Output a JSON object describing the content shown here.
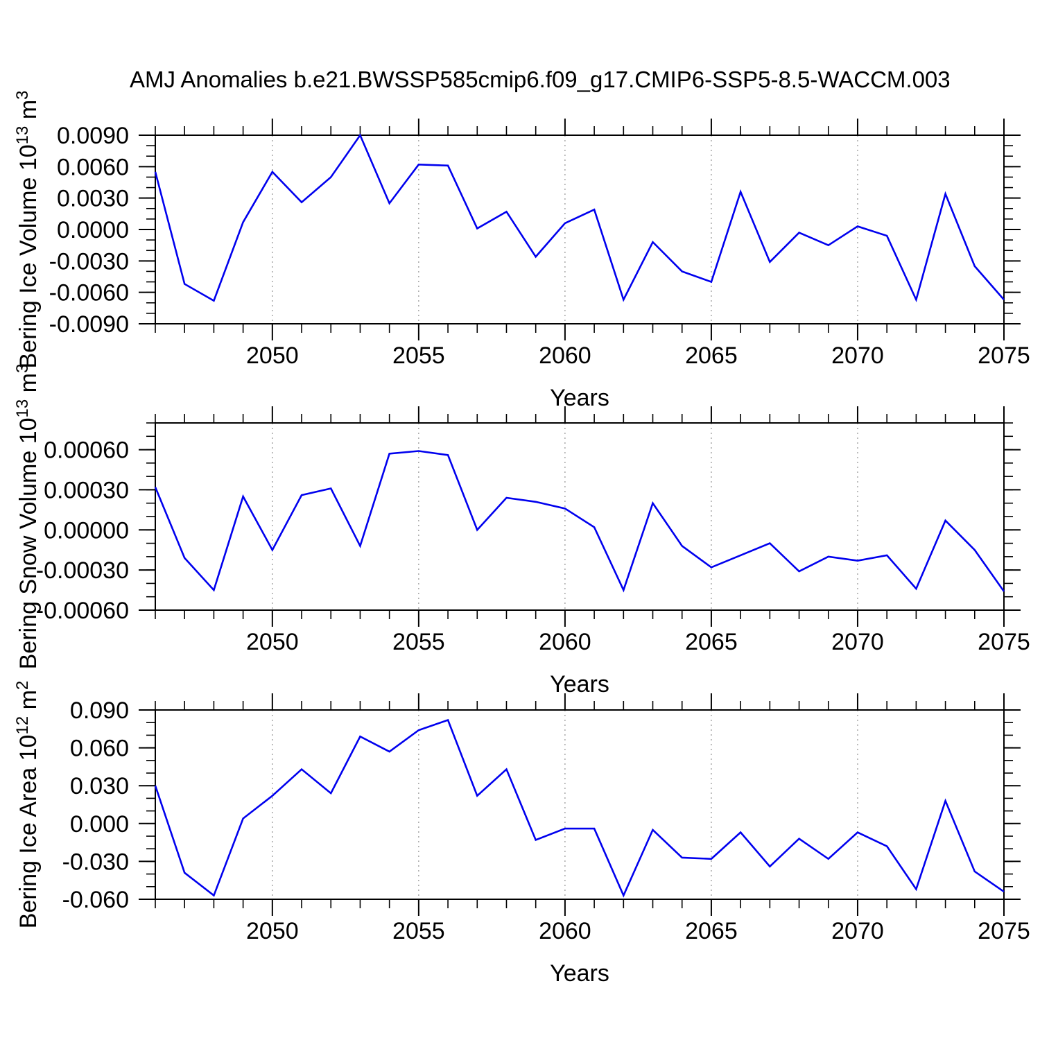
{
  "title": "AMJ Anomalies b.e21.BWSSP585cmip6.f09_g17.CMIP6-SSP5-8.5-WACCM.003",
  "colors": {
    "line": "#0000ee",
    "frame": "#000000",
    "grid": "#9a9a9a",
    "text": "#000000",
    "background": "#ffffff"
  },
  "chart_data": [
    {
      "type": "line",
      "name": "bering-ice-volume",
      "ylabel_segments": [
        [
          "text",
          "Bering Ice Volume 10"
        ],
        [
          "sup",
          "13"
        ],
        [
          "text",
          " m"
        ],
        [
          "sup",
          "3"
        ]
      ],
      "xlabel": "Years",
      "x": [
        2046,
        2047,
        2048,
        2049,
        2050,
        2051,
        2052,
        2053,
        2054,
        2055,
        2056,
        2057,
        2058,
        2059,
        2060,
        2061,
        2062,
        2063,
        2064,
        2065,
        2066,
        2067,
        2068,
        2069,
        2070,
        2071,
        2072,
        2073,
        2074,
        2075
      ],
      "values": [
        0.0055,
        -0.0052,
        -0.0068,
        0.0007,
        0.0055,
        0.0026,
        0.005,
        0.009,
        0.0025,
        0.0062,
        0.0061,
        0.0001,
        0.0017,
        -0.0026,
        0.0006,
        0.0019,
        -0.0067,
        -0.0012,
        -0.004,
        -0.005,
        0.0036,
        -0.0031,
        -0.0003,
        -0.0015,
        0.0003,
        -0.0006,
        -0.0067,
        0.0034,
        -0.0035,
        -0.0067
      ],
      "ylim": [
        -0.009,
        0.009
      ],
      "ytick_labels": [
        {
          "v": 0.009,
          "t": "0.0090"
        },
        {
          "v": 0.006,
          "t": "0.0060"
        },
        {
          "v": 0.003,
          "t": "0.0030"
        },
        {
          "v": 0.0,
          "t": "0.0000"
        },
        {
          "v": -0.003,
          "t": "-0.0030"
        },
        {
          "v": -0.006,
          "t": "-0.0060"
        },
        {
          "v": -0.009,
          "t": "-0.0090"
        }
      ],
      "ytick_minor_step": 0.001,
      "xlim": [
        2046,
        2075
      ],
      "xticks": [
        2050,
        2055,
        2060,
        2065,
        2070,
        2075
      ],
      "grid_xticks": [
        2050,
        2055,
        2060,
        2065,
        2070
      ],
      "xminor_step": 1
    },
    {
      "type": "line",
      "name": "bering-snow-volume",
      "ylabel_segments": [
        [
          "text",
          "Bering Snow Volume 10"
        ],
        [
          "sup",
          "13"
        ],
        [
          "text",
          " m"
        ],
        [
          "sup",
          "3"
        ]
      ],
      "xlabel": "Years",
      "x": [
        2046,
        2047,
        2048,
        2049,
        2050,
        2051,
        2052,
        2053,
        2054,
        2055,
        2056,
        2057,
        2058,
        2059,
        2060,
        2061,
        2062,
        2063,
        2064,
        2065,
        2066,
        2067,
        2068,
        2069,
        2070,
        2071,
        2072,
        2073,
        2074,
        2075
      ],
      "values": [
        0.00032,
        -0.00021,
        -0.00045,
        0.00025,
        -0.00015,
        0.00026,
        0.00031,
        -0.00012,
        0.00057,
        0.00059,
        0.00056,
        0.0,
        0.00024,
        0.00021,
        0.00016,
        2e-05,
        -0.00045,
        0.0002,
        -0.00012,
        -0.00028,
        -0.00019,
        -0.0001,
        -0.00031,
        -0.0002,
        -0.00023,
        -0.00019,
        -0.00044,
        7e-05,
        -0.00015,
        -0.00046
      ],
      "ylim": [
        -0.0006,
        0.0008
      ],
      "ytick_labels": [
        {
          "v": 0.0006,
          "t": "0.00060"
        },
        {
          "v": 0.0003,
          "t": "0.00030"
        },
        {
          "v": 0.0,
          "t": "0.00000"
        },
        {
          "v": -0.0003,
          "t": "-0.00030"
        },
        {
          "v": -0.0006,
          "t": "-0.00060"
        }
      ],
      "ytick_minor_step": 0.0001,
      "xlim": [
        2046,
        2075
      ],
      "xticks": [
        2050,
        2055,
        2060,
        2065,
        2070,
        2075
      ],
      "grid_xticks": [
        2050,
        2055,
        2060,
        2065,
        2070
      ],
      "xminor_step": 1
    },
    {
      "type": "line",
      "name": "bering-ice-area",
      "ylabel_segments": [
        [
          "text",
          "Bering Ice Area 10"
        ],
        [
          "sup",
          "12"
        ],
        [
          "text",
          " m"
        ],
        [
          "sup",
          "2"
        ]
      ],
      "xlabel": "Years",
      "x": [
        2046,
        2047,
        2048,
        2049,
        2050,
        2051,
        2052,
        2053,
        2054,
        2055,
        2056,
        2057,
        2058,
        2059,
        2060,
        2061,
        2062,
        2063,
        2064,
        2065,
        2066,
        2067,
        2068,
        2069,
        2070,
        2071,
        2072,
        2073,
        2074,
        2075
      ],
      "values": [
        0.03,
        -0.039,
        -0.057,
        0.004,
        0.022,
        0.043,
        0.024,
        0.069,
        0.057,
        0.074,
        0.082,
        0.022,
        0.043,
        -0.013,
        -0.004,
        -0.004,
        -0.057,
        -0.005,
        -0.027,
        -0.028,
        -0.007,
        -0.034,
        -0.012,
        -0.028,
        -0.007,
        -0.018,
        -0.052,
        0.018,
        -0.038,
        -0.054
      ],
      "ylim": [
        -0.06,
        0.09
      ],
      "ytick_labels": [
        {
          "v": 0.09,
          "t": "0.090"
        },
        {
          "v": 0.06,
          "t": "0.060"
        },
        {
          "v": 0.03,
          "t": "0.030"
        },
        {
          "v": 0.0,
          "t": "0.000"
        },
        {
          "v": -0.03,
          "t": "-0.030"
        },
        {
          "v": -0.06,
          "t": "-0.060"
        }
      ],
      "ytick_minor_step": 0.01,
      "xlim": [
        2046,
        2075
      ],
      "xticks": [
        2050,
        2055,
        2060,
        2065,
        2070,
        2075
      ],
      "grid_xticks": [
        2050,
        2055,
        2060,
        2065,
        2070
      ],
      "xminor_step": 1
    }
  ]
}
